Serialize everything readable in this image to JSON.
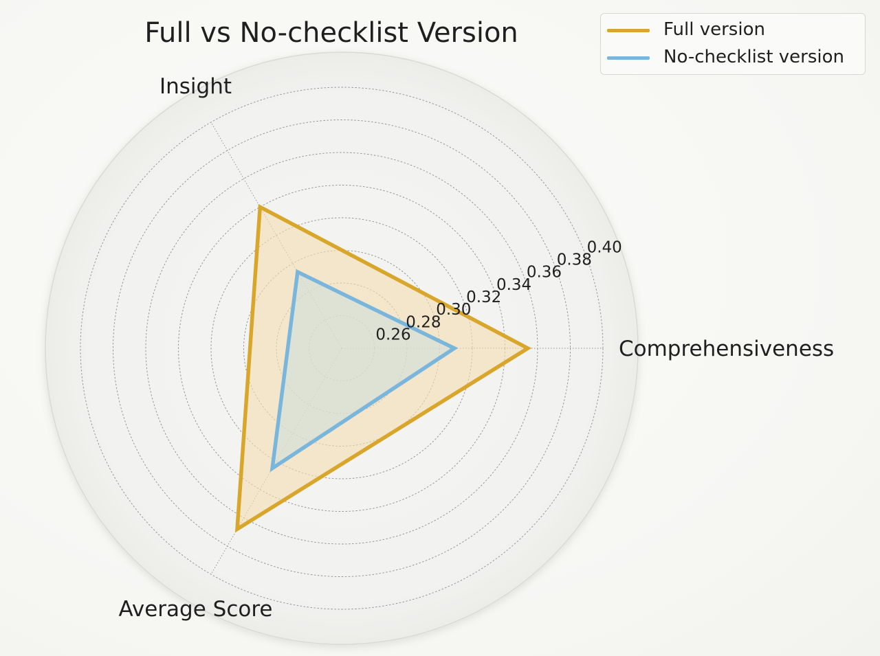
{
  "chart_data": {
    "type": "radar",
    "title": "Full vs No-checklist Version",
    "axes": [
      "Comprehensiveness",
      "Insight",
      "Average Score"
    ],
    "rlim": [
      0.24,
      0.4
    ],
    "rticks": [
      0.26,
      0.28,
      0.3,
      0.32,
      0.34,
      0.36,
      0.38,
      0.4
    ],
    "rtick_labels": [
      "0.26",
      "0.28",
      "0.30",
      "0.32",
      "0.34",
      "0.36",
      "0.38",
      "0.40"
    ],
    "grid": true,
    "legend_position": "top-right",
    "series": [
      {
        "name": "Full version",
        "values": [
          0.354,
          0.34,
          0.368
        ],
        "color": "#d9a62c",
        "fill": "#f5ddb0"
      },
      {
        "name": "No-checklist version",
        "values": [
          0.309,
          0.294,
          0.325
        ],
        "color": "#7ab6dc",
        "fill": "#cfe0dc"
      }
    ]
  },
  "legend": {
    "items": [
      "Full version",
      "No-checklist version"
    ]
  }
}
